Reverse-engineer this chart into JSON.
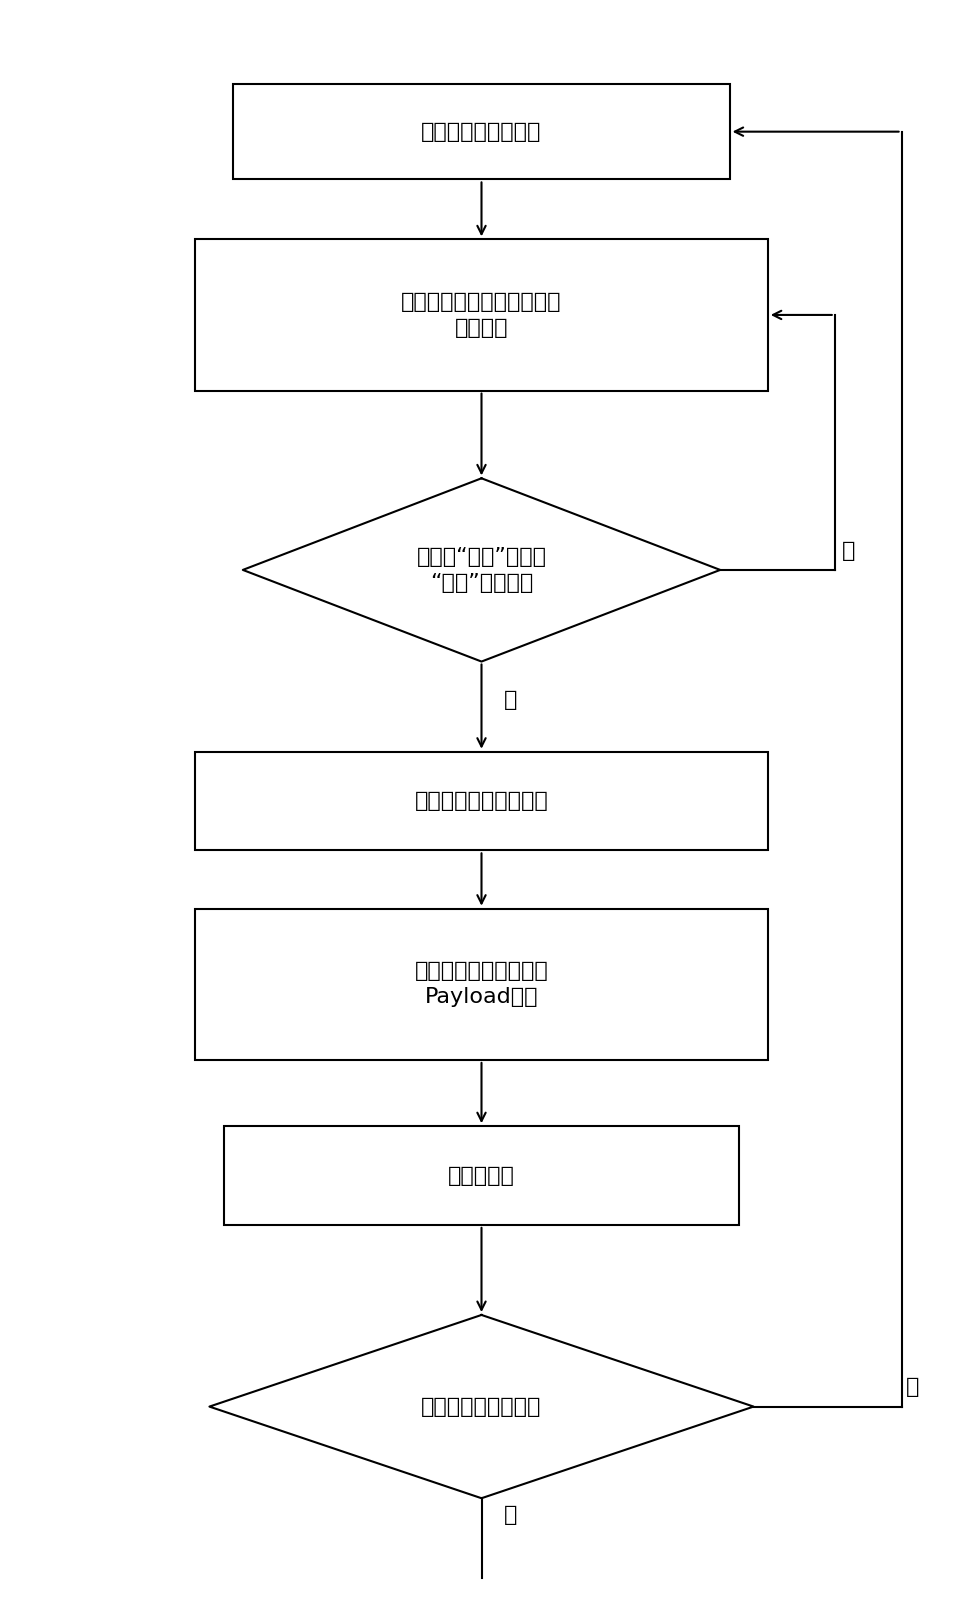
{
  "bg_color": "#ffffff",
  "line_color": "#000000",
  "text_color": "#000000",
  "box_fill": "#ffffff",
  "fig_width": 9.63,
  "fig_height": 16.02,
  "font_size": 16,
  "box1_label": "维护待检测时隙信息",
  "box2_label": "对待检测时隙相邻帧数据做\n异或运算",
  "dia1_label": "检测到“空闲”状态到\n“工作”状态转变",
  "box3_label": "初步判定时隙绑定状态",
  "box4_label": "根据时隙绑定关系重组\nPayload数据",
  "box5_label": "提取数据帧",
  "dia2_label": "链路层协议解析成功",
  "yes_label": "是",
  "no_label": "否"
}
